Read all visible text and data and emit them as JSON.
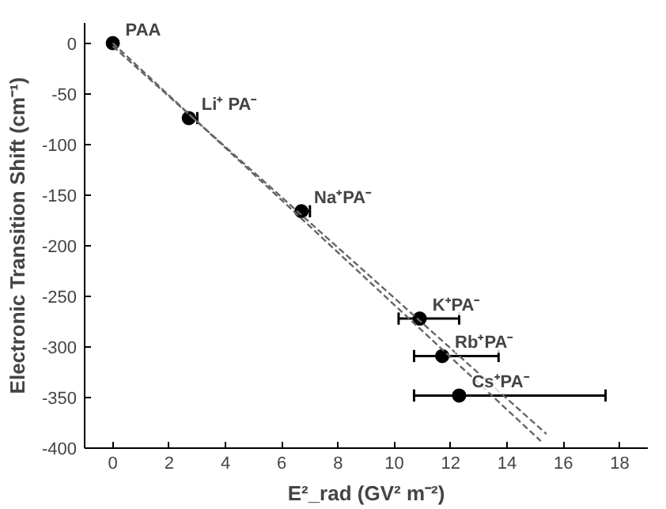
{
  "chart_data": {
    "type": "scatter",
    "xlabel": "E²_rad (GV² m⁻²)",
    "ylabel": "Electronic Transition Shift (cm⁻¹)",
    "xlim": [
      -1,
      19
    ],
    "ylim": [
      -400,
      20
    ],
    "xticks": [
      0,
      2,
      4,
      6,
      8,
      10,
      12,
      14,
      16,
      18
    ],
    "yticks": [
      0,
      -50,
      -100,
      -150,
      -200,
      -250,
      -300,
      -350,
      -400
    ],
    "grid": false,
    "series": [
      {
        "marker": "circle",
        "color": "#000000",
        "x": [
          0,
          2.7,
          6.7,
          10.9,
          11.7,
          12.3
        ],
        "values": [
          0,
          -74,
          -166,
          -272,
          -309,
          -348
        ],
        "xerrors": [
          null,
          [
            2.6,
            3.0
          ],
          [
            6.6,
            7.0
          ],
          [
            10.15,
            12.3
          ],
          [
            10.7,
            13.7
          ],
          [
            10.7,
            17.5
          ]
        ]
      },
      {
        "type": "line",
        "line_style": "dashed",
        "color": "#666666",
        "x": [
          0,
          15.2
        ],
        "values": [
          0,
          -393
        ]
      },
      {
        "type": "line",
        "line_style": "dashed",
        "color": "#666666",
        "x": [
          0,
          15.4
        ],
        "values": [
          -3,
          -386
        ]
      }
    ],
    "annotations": [
      {
        "text": "PAA",
        "x": 0,
        "y": 0
      },
      {
        "text": "Li⁺ PA⁻",
        "x": 2.7,
        "y": -74
      },
      {
        "text": "Na⁺PA⁻",
        "x": 6.7,
        "y": -166
      },
      {
        "text": "K⁺PA⁻",
        "x": 10.9,
        "y": -272
      },
      {
        "text": "Rb⁺PA⁻",
        "x": 11.7,
        "y": -309
      },
      {
        "text": "Cs⁺PA⁻",
        "x": 12.3,
        "y": -348
      }
    ]
  }
}
